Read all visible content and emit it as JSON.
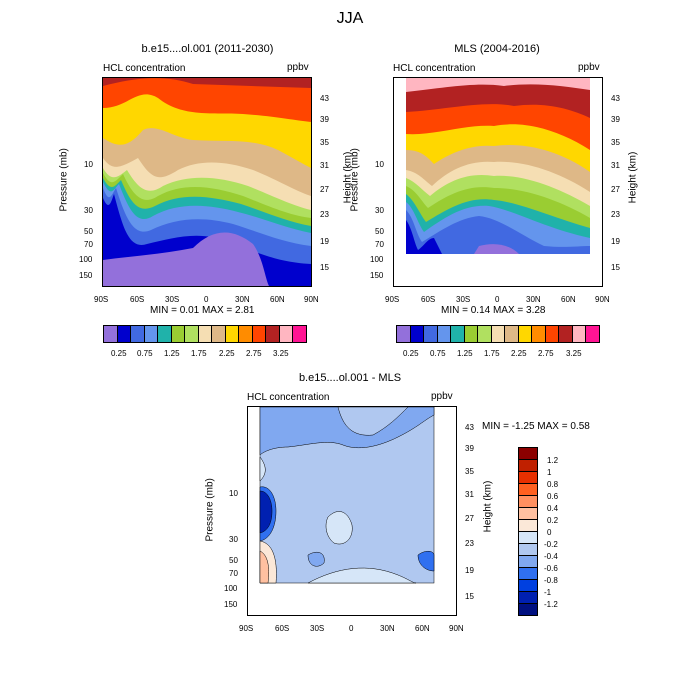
{
  "figure": {
    "title": "JJA"
  },
  "chart_data": [
    {
      "type": "heatmap",
      "title": "b.e15....ol.001 (2011-2030)",
      "left_label": "HCL concentration",
      "right_label": "ppbv",
      "ylabel": "Pressure (mb)",
      "ylabel_right": "Height (km)",
      "x_ticks": [
        "90S",
        "60S",
        "30S",
        "0",
        "30N",
        "60N",
        "90N"
      ],
      "y_ticks": [
        "10",
        "30",
        "50",
        "70",
        "100",
        "150"
      ],
      "height_ticks": [
        "43",
        "39",
        "35",
        "31",
        "27",
        "23",
        "19",
        "15"
      ],
      "min_max_text": "MIN =  0.01  MAX =  2.81",
      "levels": [
        "0.25",
        "0.75",
        "1.25",
        "1.75",
        "2.25",
        "2.75",
        "3.25"
      ]
    },
    {
      "type": "heatmap",
      "title": "MLS (2004-2016)",
      "left_label": "HCL concentration",
      "right_label": "ppbv",
      "ylabel": "Pressure (mb)",
      "ylabel_right": "Height (km)",
      "x_ticks": [
        "90S",
        "60S",
        "30S",
        "0",
        "30N",
        "60N",
        "90N"
      ],
      "y_ticks": [
        "10",
        "30",
        "50",
        "70",
        "100",
        "150"
      ],
      "height_ticks": [
        "43",
        "39",
        "35",
        "31",
        "27",
        "23",
        "19",
        "15"
      ],
      "min_max_text": "MIN =  0.14  MAX =  3.28",
      "levels": [
        "0.25",
        "0.75",
        "1.25",
        "1.75",
        "2.25",
        "2.75",
        "3.25"
      ]
    },
    {
      "type": "heatmap",
      "title": "b.e15....ol.001 - MLS",
      "left_label": "HCL concentration",
      "right_label": "ppbv",
      "ylabel": "Pressure (mb)",
      "ylabel_right": "Height (km)",
      "x_ticks": [
        "90S",
        "60S",
        "30S",
        "0",
        "30N",
        "60N",
        "90N"
      ],
      "y_ticks": [
        "10",
        "30",
        "50",
        "70",
        "100",
        "150"
      ],
      "height_ticks": [
        "43",
        "39",
        "35",
        "31",
        "27",
        "23",
        "19",
        "15"
      ],
      "min_max_text": "MIN = -1.25  MAX =  0.58",
      "levels": [
        "1.2",
        "1",
        "0.8",
        "0.6",
        "0.4",
        "0.2",
        "0",
        "-0.2",
        "-0.4",
        "-0.6",
        "-0.8",
        "-1",
        "-1.2"
      ]
    }
  ],
  "palettes": {
    "hcl": [
      "#9370db",
      "#0000cd",
      "#4169e1",
      "#6495ed",
      "#20b2aa",
      "#9acd32",
      "#b0e060",
      "#f5deb3",
      "#deb887",
      "#ffd700",
      "#ff8c00",
      "#ff4500",
      "#b22222",
      "#ffb6c1",
      "#ff1493"
    ],
    "diff": [
      "#8b0000",
      "#c02000",
      "#e83000",
      "#ff6020",
      "#ff9060",
      "#ffc0a0",
      "#fbe8d8",
      "#d6e6f8",
      "#b0c8f0",
      "#80a8f0",
      "#3070f0",
      "#0040e0",
      "#0020b0",
      "#001080"
    ]
  }
}
